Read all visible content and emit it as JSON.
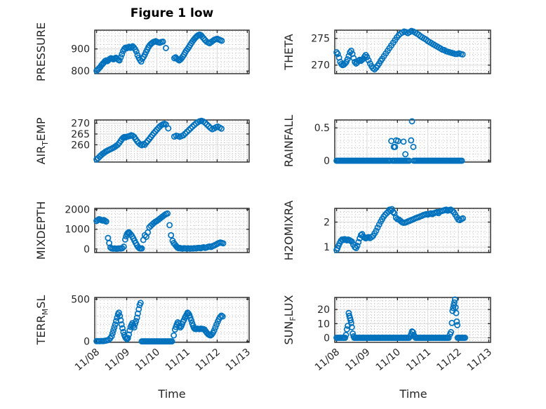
{
  "figure": {
    "title": "Figure 1 low",
    "xlabel": "Time",
    "x_tick_labels": [
      "11/08",
      "11/09",
      "11/10",
      "11/11",
      "11/12",
      "11/13"
    ],
    "colors": {
      "marker": "#0072BD",
      "axis": "#262626",
      "grid_major": "#d9d9d9",
      "grid_minor": "#c6c6c6",
      "text": "#262626",
      "title": "#000000",
      "background": "#ffffff"
    },
    "grid": true,
    "minor_grid": true
  },
  "chart_data": [
    {
      "type": "scatter",
      "name": "PRESSURE",
      "ylabel_parts": [
        {
          "text": "PRESSURE",
          "sub": false
        }
      ],
      "yticks": [
        800,
        900
      ],
      "ylim": [
        788,
        985
      ],
      "x": [
        0.0,
        0.04,
        0.08,
        0.12,
        0.16,
        0.2,
        0.24,
        0.28,
        0.32,
        0.36,
        0.4,
        0.44,
        0.48,
        0.52,
        0.56,
        0.6,
        0.64,
        0.68,
        0.72,
        0.76,
        0.8,
        0.84,
        0.88,
        0.92,
        0.96,
        1.0,
        1.04,
        1.08,
        1.12,
        1.16,
        1.2,
        1.24,
        1.28,
        1.32,
        1.36,
        1.4,
        1.44,
        1.48,
        1.52,
        1.56,
        1.6,
        1.64,
        1.68,
        1.72,
        1.76,
        1.8,
        1.84,
        1.88,
        1.92,
        1.96,
        2.0,
        2.05,
        2.1,
        2.15,
        2.2,
        2.3,
        2.58,
        2.62,
        2.66,
        2.7,
        2.74,
        2.78,
        2.82,
        2.86,
        2.9,
        2.94,
        2.98,
        3.02,
        3.06,
        3.1,
        3.14,
        3.18,
        3.22,
        3.26,
        3.3,
        3.34,
        3.38,
        3.42,
        3.46,
        3.5,
        3.55,
        3.6,
        3.65,
        3.7,
        3.75,
        3.8,
        3.85,
        3.9,
        3.95,
        4.0,
        4.05,
        4.1,
        4.15
      ],
      "y": [
        801,
        806,
        812,
        818,
        826,
        832,
        838,
        845,
        848,
        845,
        850,
        855,
        858,
        856,
        853,
        857,
        860,
        856,
        851,
        848,
        862,
        876,
        890,
        900,
        906,
        903,
        907,
        910,
        905,
        908,
        912,
        906,
        898,
        888,
        872,
        860,
        851,
        843,
        856,
        864,
        874,
        886,
        897,
        908,
        916,
        922,
        927,
        931,
        933,
        935,
        932,
        930,
        928,
        931,
        933,
        904,
        858,
        862,
        856,
        852,
        848,
        852,
        858,
        866,
        874,
        884,
        893,
        900,
        908,
        917,
        926,
        934,
        941,
        948,
        954,
        959,
        963,
        965,
        962,
        956,
        948,
        940,
        933,
        929,
        926,
        931,
        936,
        941,
        944,
        946,
        943,
        940,
        937
      ]
    },
    {
      "type": "scatter",
      "name": "THETA",
      "ylabel_parts": [
        {
          "text": "THETA",
          "sub": false
        }
      ],
      "yticks": [
        270,
        275
      ],
      "ylim": [
        268.4,
        276.55
      ],
      "x": [
        0.0,
        0.04,
        0.08,
        0.12,
        0.16,
        0.2,
        0.24,
        0.28,
        0.32,
        0.36,
        0.4,
        0.44,
        0.48,
        0.52,
        0.56,
        0.6,
        0.64,
        0.68,
        0.72,
        0.76,
        0.8,
        0.84,
        0.88,
        0.92,
        0.96,
        1.0,
        1.05,
        1.1,
        1.15,
        1.2,
        1.25,
        1.3,
        1.35,
        1.4,
        1.45,
        1.5,
        1.56,
        1.62,
        1.68,
        1.74,
        1.8,
        1.86,
        1.92,
        1.98,
        2.04,
        2.1,
        2.16,
        2.22,
        2.28,
        2.34,
        2.4,
        2.46,
        2.52,
        2.58,
        2.64,
        2.7,
        2.76,
        2.82,
        2.88,
        2.94,
        3.0,
        3.06,
        3.12,
        3.18,
        3.24,
        3.3,
        3.36,
        3.42,
        3.48,
        3.54,
        3.6,
        3.66,
        3.72,
        3.78,
        3.84,
        3.9,
        3.96,
        4.02,
        4.08,
        4.14
      ],
      "y": [
        272.4,
        272.1,
        271.4,
        270.6,
        270.2,
        270.0,
        270.1,
        270.3,
        270.6,
        271.1,
        271.7,
        272.4,
        272.7,
        272.1,
        271.3,
        270.6,
        270.3,
        270.5,
        270.8,
        271.0,
        270.8,
        271.0,
        271.2,
        271.6,
        271.9,
        271.5,
        270.9,
        270.3,
        269.8,
        269.4,
        269.2,
        269.5,
        269.9,
        270.3,
        270.8,
        271.2,
        271.7,
        272.2,
        272.7,
        273.2,
        273.7,
        274.2,
        274.7,
        275.2,
        275.6,
        275.9,
        276.1,
        276.3,
        276.2,
        276.0,
        276.2,
        276.4,
        276.3,
        276.1,
        275.9,
        275.7,
        275.4,
        275.2,
        275.0,
        274.8,
        274.5,
        274.3,
        274.1,
        273.9,
        273.7,
        273.5,
        273.3,
        273.1,
        272.9,
        272.8,
        272.6,
        272.5,
        272.4,
        272.3,
        272.2,
        272.1,
        272.1,
        272.2,
        272.1,
        272.0
      ]
    },
    {
      "type": "scatter",
      "name": "AIR_TEMP",
      "ylabel_parts": [
        {
          "text": "AIR",
          "sub": false
        },
        {
          "text": "T",
          "sub": true
        },
        {
          "text": "EMP",
          "sub": false
        }
      ],
      "yticks": [
        260,
        265,
        270
      ],
      "ylim": [
        252,
        271.5
      ],
      "x": [
        0.0,
        0.05,
        0.1,
        0.15,
        0.2,
        0.25,
        0.3,
        0.35,
        0.4,
        0.45,
        0.5,
        0.55,
        0.6,
        0.65,
        0.7,
        0.75,
        0.8,
        0.84,
        0.88,
        0.92,
        0.96,
        1.0,
        1.05,
        1.1,
        1.15,
        1.2,
        1.25,
        1.3,
        1.35,
        1.4,
        1.45,
        1.5,
        1.55,
        1.6,
        1.65,
        1.7,
        1.75,
        1.8,
        1.85,
        1.9,
        1.95,
        2.0,
        2.05,
        2.1,
        2.15,
        2.2,
        2.25,
        2.3,
        2.38,
        2.58,
        2.64,
        2.7,
        2.76,
        2.82,
        2.88,
        2.94,
        3.0,
        3.06,
        3.12,
        3.18,
        3.24,
        3.3,
        3.36,
        3.42,
        3.48,
        3.54,
        3.6,
        3.66,
        3.72,
        3.78,
        3.84,
        3.9,
        3.96,
        4.02,
        4.08,
        4.14
      ],
      "y": [
        253.2,
        253.8,
        254.5,
        255.2,
        255.8,
        256.3,
        256.8,
        257.2,
        257.6,
        257.9,
        258.2,
        258.6,
        259.0,
        259.5,
        260.0,
        260.8,
        261.8,
        262.6,
        263.2,
        263.6,
        263.4,
        263.7,
        263.9,
        264.1,
        264.4,
        264.2,
        263.6,
        262.6,
        261.6,
        260.8,
        260.2,
        259.8,
        260.3,
        260.0,
        261.0,
        261.8,
        262.7,
        263.6,
        264.5,
        265.4,
        266.2,
        267.0,
        267.8,
        268.5,
        269.1,
        269.5,
        269.7,
        269.4,
        267.6,
        263.8,
        264.2,
        264.0,
        263.7,
        264.1,
        264.4,
        265.2,
        266.0,
        266.8,
        267.6,
        268.4,
        269.2,
        269.9,
        270.5,
        270.9,
        271.1,
        270.8,
        270.2,
        269.4,
        268.6,
        267.8,
        267.2,
        267.6,
        268.1,
        268.4,
        268.0,
        267.5
      ]
    },
    {
      "type": "scatter",
      "name": "RAINFALL",
      "ylabel_parts": [
        {
          "text": "RAINFALL",
          "sub": false
        }
      ],
      "yticks": [
        0,
        0.5
      ],
      "ylim": [
        -0.02,
        0.62
      ],
      "zero_runs": {
        "step": 0.045,
        "ranges": [
          [
            0.0,
            1.76
          ],
          [
            1.84,
            2.42
          ],
          [
            2.54,
            4.15
          ]
        ]
      },
      "x": [
        1.8,
        1.88,
        1.92,
        1.96,
        2.02,
        2.2,
        2.26,
        2.45,
        2.48,
        2.52
      ],
      "y": [
        0.3,
        0.21,
        0.21,
        0.31,
        0.3,
        0.29,
        0.1,
        0.31,
        0.6,
        0.21
      ]
    },
    {
      "type": "scatter",
      "name": "MIXDEPTH",
      "ylabel_parts": [
        {
          "text": "MIXDEPTH",
          "sub": false
        }
      ],
      "yticks": [
        0,
        1000,
        2000
      ],
      "ylim": [
        -180,
        2060
      ],
      "x": [
        0.0,
        0.04,
        0.08,
        0.12,
        0.16,
        0.2,
        0.24,
        0.28,
        0.32,
        0.38,
        0.42,
        0.46,
        0.5,
        0.55,
        0.6,
        0.65,
        0.7,
        0.75,
        0.8,
        0.85,
        0.9,
        0.95,
        0.98,
        1.01,
        1.04,
        1.07,
        1.1,
        1.14,
        1.18,
        1.22,
        1.26,
        1.3,
        1.34,
        1.38,
        1.42,
        1.46,
        1.5,
        1.55,
        1.6,
        1.65,
        1.7,
        1.75,
        1.8,
        1.85,
        1.9,
        1.95,
        2.0,
        2.05,
        2.1,
        2.15,
        2.2,
        2.25,
        2.3,
        2.35,
        2.42,
        2.47,
        2.52,
        2.56,
        2.6,
        2.64,
        2.68,
        2.72,
        2.76,
        2.8,
        2.85,
        2.9,
        2.95,
        3.0,
        3.05,
        3.1,
        3.15,
        3.2,
        3.25,
        3.3,
        3.35,
        3.4,
        3.45,
        3.5,
        3.55,
        3.6,
        3.65,
        3.7,
        3.75,
        3.8,
        3.85,
        3.9,
        3.95,
        4.0,
        4.05,
        4.1,
        4.15,
        4.2
      ],
      "y": [
        1420,
        1470,
        1510,
        1500,
        1460,
        1440,
        1470,
        1430,
        1390,
        560,
        300,
        80,
        30,
        20,
        25,
        15,
        20,
        30,
        25,
        40,
        120,
        480,
        640,
        760,
        820,
        850,
        800,
        730,
        640,
        540,
        420,
        300,
        190,
        90,
        40,
        25,
        30,
        460,
        700,
        620,
        840,
        1100,
        1180,
        1250,
        1320,
        1380,
        1420,
        1480,
        1540,
        1600,
        1660,
        1720,
        1770,
        1800,
        1210,
        700,
        420,
        300,
        230,
        150,
        80,
        40,
        60,
        30,
        20,
        40,
        30,
        25,
        35,
        20,
        30,
        25,
        40,
        30,
        50,
        60,
        40,
        70,
        90,
        60,
        80,
        110,
        130,
        100,
        150,
        180,
        220,
        260,
        300,
        330,
        310,
        290
      ]
    },
    {
      "type": "scatter",
      "name": "H2OMIXRA",
      "ylabel_parts": [
        {
          "text": "H2OMIXRA",
          "sub": false
        }
      ],
      "yticks": [
        1,
        2
      ],
      "ylim": [
        0.78,
        2.55
      ],
      "x": [
        0.0,
        0.03,
        0.06,
        0.1,
        0.14,
        0.18,
        0.22,
        0.26,
        0.3,
        0.34,
        0.38,
        0.42,
        0.46,
        0.5,
        0.55,
        0.6,
        0.64,
        0.68,
        0.72,
        0.76,
        0.8,
        0.84,
        0.88,
        0.92,
        0.96,
        1.0,
        1.05,
        1.1,
        1.15,
        1.2,
        1.25,
        1.3,
        1.35,
        1.4,
        1.45,
        1.5,
        1.55,
        1.6,
        1.65,
        1.7,
        1.74,
        1.78,
        1.82,
        1.86,
        1.9,
        1.95,
        2.0,
        2.05,
        2.1,
        2.15,
        2.2,
        2.25,
        2.3,
        2.35,
        2.4,
        2.45,
        2.5,
        2.55,
        2.6,
        2.65,
        2.7,
        2.75,
        2.8,
        2.85,
        2.9,
        2.95,
        3.0,
        3.05,
        3.1,
        3.15,
        3.2,
        3.25,
        3.3,
        3.35,
        3.4,
        3.45,
        3.5,
        3.55,
        3.6,
        3.65,
        3.7,
        3.75,
        3.8,
        3.85,
        3.9,
        3.95,
        4.0,
        4.05,
        4.1,
        4.15
      ],
      "y": [
        0.88,
        0.95,
        1.05,
        1.15,
        1.25,
        1.3,
        1.28,
        1.32,
        1.3,
        1.27,
        1.3,
        1.28,
        1.25,
        1.22,
        1.1,
        1.0,
        0.96,
        1.05,
        1.2,
        1.35,
        1.48,
        1.52,
        1.42,
        1.38,
        1.35,
        1.38,
        1.4,
        1.36,
        1.4,
        1.45,
        1.55,
        1.65,
        1.78,
        1.9,
        2.02,
        2.12,
        2.22,
        2.3,
        2.36,
        2.42,
        2.5,
        2.45,
        2.52,
        2.4,
        2.35,
        2.18,
        2.12,
        2.1,
        2.05,
        2.0,
        1.97,
        1.98,
        2.0,
        2.03,
        2.05,
        2.08,
        2.1,
        2.13,
        2.16,
        2.18,
        2.2,
        2.23,
        2.25,
        2.28,
        2.3,
        2.32,
        2.3,
        2.33,
        2.35,
        2.32,
        2.36,
        2.38,
        2.4,
        2.36,
        2.42,
        2.44,
        2.46,
        2.48,
        2.5,
        2.46,
        2.48,
        2.5,
        2.45,
        2.4,
        2.3,
        2.2,
        2.1,
        2.08,
        2.12,
        2.15
      ]
    },
    {
      "type": "scatter",
      "name": "TERR_MSL",
      "ylabel_parts": [
        {
          "text": "TERR",
          "sub": false
        },
        {
          "text": "M",
          "sub": true
        },
        {
          "text": "SL",
          "sub": false
        }
      ],
      "yticks": [
        0,
        500
      ],
      "ylim": [
        -12,
        520
      ],
      "zero_runs": {
        "step": 0.04,
        "ranges": [
          [
            1.5,
            2.52
          ]
        ]
      },
      "x": [
        0.0,
        0.05,
        0.1,
        0.15,
        0.2,
        0.25,
        0.3,
        0.35,
        0.4,
        0.45,
        0.5,
        0.53,
        0.56,
        0.59,
        0.62,
        0.65,
        0.68,
        0.71,
        0.74,
        0.77,
        0.8,
        0.83,
        0.86,
        0.89,
        0.92,
        0.95,
        0.98,
        1.01,
        1.04,
        1.07,
        1.1,
        1.13,
        1.16,
        1.19,
        1.22,
        1.25,
        1.28,
        1.31,
        1.34,
        1.37,
        1.4,
        1.43,
        1.46,
        2.56,
        2.6,
        2.63,
        2.66,
        2.69,
        2.72,
        2.75,
        2.78,
        2.81,
        2.84,
        2.87,
        2.9,
        2.93,
        2.96,
        2.99,
        3.02,
        3.05,
        3.08,
        3.11,
        3.14,
        3.17,
        3.2,
        3.23,
        3.26,
        3.3,
        3.34,
        3.38,
        3.42,
        3.46,
        3.5,
        3.54,
        3.58,
        3.62,
        3.66,
        3.7,
        3.74,
        3.78,
        3.82,
        3.86,
        3.9,
        3.94,
        3.98,
        4.02,
        4.06,
        4.1,
        4.14,
        4.18
      ],
      "y": [
        2,
        3,
        2,
        4,
        3,
        5,
        8,
        12,
        18,
        35,
        60,
        95,
        130,
        165,
        200,
        240,
        280,
        320,
        340,
        300,
        250,
        200,
        155,
        110,
        75,
        50,
        35,
        25,
        40,
        80,
        130,
        170,
        195,
        215,
        185,
        165,
        210,
        240,
        280,
        330,
        380,
        430,
        455,
        70,
        140,
        170,
        200,
        225,
        210,
        185,
        165,
        180,
        205,
        235,
        255,
        280,
        300,
        320,
        340,
        330,
        310,
        280,
        250,
        215,
        185,
        160,
        148,
        145,
        150,
        148,
        145,
        150,
        148,
        145,
        140,
        120,
        100,
        85,
        75,
        70,
        80,
        100,
        130,
        165,
        200,
        235,
        265,
        290,
        305,
        295
      ]
    },
    {
      "type": "scatter",
      "name": "SUN_FLUX",
      "ylabel_parts": [
        {
          "text": "SUN",
          "sub": false
        },
        {
          "text": "F",
          "sub": true
        },
        {
          "text": "LUX",
          "sub": false
        }
      ],
      "yticks": [
        0,
        10,
        20
      ],
      "ylim": [
        -3.2,
        28.5
      ],
      "zero_runs": {
        "step": 0.04,
        "ranges": [
          [
            0.0,
            0.28
          ],
          [
            0.58,
            2.38
          ],
          [
            2.6,
            3.7
          ],
          [
            3.98,
            4.22
          ]
        ]
      },
      "x": [
        0.31,
        0.34,
        0.37,
        0.4,
        0.42,
        0.44,
        0.46,
        0.48,
        0.5,
        0.53,
        0.56,
        2.42,
        2.45,
        2.48,
        2.51,
        2.54,
        2.57,
        3.73,
        3.76,
        3.79,
        3.81,
        3.83,
        3.85,
        3.87,
        3.89,
        3.91,
        3.93,
        3.95,
        3.97
      ],
      "y": [
        2,
        6,
        8.5,
        17.5,
        15.5,
        14,
        12.5,
        10.5,
        7.5,
        3,
        1,
        1,
        2.5,
        4.5,
        4,
        2,
        0.8,
        2.5,
        4,
        10.5,
        19,
        21,
        23,
        25,
        27,
        21.5,
        17.5,
        11.5,
        9
      ]
    }
  ],
  "x_axis": {
    "tick_days": [
      0,
      1,
      2,
      3,
      4,
      5
    ],
    "xlim_days": [
      -0.06,
      5.06
    ]
  }
}
